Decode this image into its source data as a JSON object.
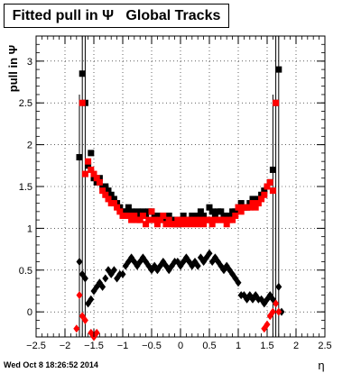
{
  "chart_data": {
    "type": "scatter",
    "title": "Fitted pull in Ψ   Global Tracks",
    "xlabel": "η",
    "ylabel": "pull in Ψ",
    "xlim": [
      -2.5,
      2.5
    ],
    "ylim": [
      -0.3,
      3.3
    ],
    "xticks": [
      "−2.5",
      "−2",
      "−1.5",
      "−1",
      "−0.5",
      "0",
      "0.5",
      "1",
      "1.5",
      "2",
      "2.5"
    ],
    "yticks": [
      "0",
      "0.5",
      "1",
      "1.5",
      "2",
      "2.5",
      "3"
    ],
    "grid": true,
    "series": [
      {
        "marker": "square",
        "color": "#000000",
        "points": [
          [
            -1.75,
            1.85
          ],
          [
            -1.7,
            2.85
          ],
          [
            -1.65,
            2.5
          ],
          [
            -1.6,
            1.75
          ],
          [
            -1.55,
            1.9
          ],
          [
            -1.5,
            1.6
          ],
          [
            -1.45,
            1.55
          ],
          [
            -1.4,
            1.6
          ],
          [
            -1.35,
            1.5
          ],
          [
            -1.3,
            1.5
          ],
          [
            -1.25,
            1.45
          ],
          [
            -1.2,
            1.4
          ],
          [
            -1.15,
            1.35
          ],
          [
            -1.1,
            1.3
          ],
          [
            -1.05,
            1.25
          ],
          [
            -1.0,
            1.2
          ],
          [
            -0.95,
            1.2
          ],
          [
            -0.9,
            1.25
          ],
          [
            -0.85,
            1.2
          ],
          [
            -0.8,
            1.15
          ],
          [
            -0.75,
            1.2
          ],
          [
            -0.7,
            1.15
          ],
          [
            -0.65,
            1.2
          ],
          [
            -0.6,
            1.15
          ],
          [
            -0.55,
            1.2
          ],
          [
            -0.5,
            1.2
          ],
          [
            -0.45,
            1.15
          ],
          [
            -0.4,
            1.15
          ],
          [
            -0.35,
            1.1
          ],
          [
            -0.3,
            1.15
          ],
          [
            -0.25,
            1.1
          ],
          [
            -0.2,
            1.15
          ],
          [
            -0.15,
            1.1
          ],
          [
            -0.1,
            1.1
          ],
          [
            -0.05,
            1.05
          ],
          [
            0.0,
            1.1
          ],
          [
            0.05,
            1.15
          ],
          [
            0.1,
            1.1
          ],
          [
            0.15,
            1.1
          ],
          [
            0.2,
            1.15
          ],
          [
            0.25,
            1.1
          ],
          [
            0.3,
            1.15
          ],
          [
            0.35,
            1.2
          ],
          [
            0.4,
            1.15
          ],
          [
            0.45,
            1.1
          ],
          [
            0.5,
            1.25
          ],
          [
            0.55,
            1.2
          ],
          [
            0.6,
            1.15
          ],
          [
            0.65,
            1.2
          ],
          [
            0.7,
            1.2
          ],
          [
            0.75,
            1.15
          ],
          [
            0.8,
            1.15
          ],
          [
            0.85,
            1.15
          ],
          [
            0.9,
            1.2
          ],
          [
            0.95,
            1.2
          ],
          [
            1.0,
            1.25
          ],
          [
            1.05,
            1.3
          ],
          [
            1.1,
            1.25
          ],
          [
            1.15,
            1.25
          ],
          [
            1.2,
            1.3
          ],
          [
            1.25,
            1.35
          ],
          [
            1.3,
            1.3
          ],
          [
            1.35,
            1.35
          ],
          [
            1.4,
            1.4
          ],
          [
            1.45,
            1.45
          ],
          [
            1.5,
            1.5
          ],
          [
            1.55,
            1.55
          ],
          [
            1.6,
            1.7
          ],
          [
            1.65,
            2.5
          ],
          [
            1.7,
            2.9
          ]
        ]
      },
      {
        "marker": "square",
        "color": "#ff0000",
        "points": [
          [
            -1.7,
            2.5
          ],
          [
            -1.65,
            1.65
          ],
          [
            -1.6,
            1.8
          ],
          [
            -1.55,
            1.7
          ],
          [
            -1.5,
            1.65
          ],
          [
            -1.45,
            1.6
          ],
          [
            -1.4,
            1.55
          ],
          [
            -1.35,
            1.45
          ],
          [
            -1.3,
            1.4
          ],
          [
            -1.25,
            1.35
          ],
          [
            -1.2,
            1.3
          ],
          [
            -1.15,
            1.3
          ],
          [
            -1.1,
            1.25
          ],
          [
            -1.05,
            1.2
          ],
          [
            -1.0,
            1.15
          ],
          [
            -0.95,
            1.15
          ],
          [
            -0.9,
            1.15
          ],
          [
            -0.85,
            1.1
          ],
          [
            -0.8,
            1.15
          ],
          [
            -0.75,
            1.1
          ],
          [
            -0.7,
            1.1
          ],
          [
            -0.65,
            1.15
          ],
          [
            -0.6,
            1.05
          ],
          [
            -0.55,
            1.1
          ],
          [
            -0.5,
            1.2
          ],
          [
            -0.45,
            1.1
          ],
          [
            -0.4,
            1.05
          ],
          [
            -0.35,
            1.1
          ],
          [
            -0.3,
            1.15
          ],
          [
            -0.25,
            1.05
          ],
          [
            -0.2,
            1.1
          ],
          [
            -0.15,
            1.05
          ],
          [
            -0.1,
            1.05
          ],
          [
            -0.05,
            1.1
          ],
          [
            0.0,
            1.05
          ],
          [
            0.05,
            1.1
          ],
          [
            0.1,
            1.05
          ],
          [
            0.15,
            1.1
          ],
          [
            0.2,
            1.05
          ],
          [
            0.25,
            1.1
          ],
          [
            0.3,
            1.05
          ],
          [
            0.35,
            1.1
          ],
          [
            0.4,
            1.05
          ],
          [
            0.45,
            1.1
          ],
          [
            0.5,
            1.1
          ],
          [
            0.55,
            1.05
          ],
          [
            0.6,
            1.1
          ],
          [
            0.65,
            1.1
          ],
          [
            0.7,
            1.1
          ],
          [
            0.75,
            1.1
          ],
          [
            0.8,
            1.05
          ],
          [
            0.85,
            1.1
          ],
          [
            0.9,
            1.1
          ],
          [
            0.95,
            1.15
          ],
          [
            1.0,
            1.25
          ],
          [
            1.05,
            1.2
          ],
          [
            1.1,
            1.25
          ],
          [
            1.15,
            1.25
          ],
          [
            1.2,
            1.25
          ],
          [
            1.25,
            1.3
          ],
          [
            1.3,
            1.25
          ],
          [
            1.35,
            1.3
          ],
          [
            1.4,
            1.35
          ],
          [
            1.45,
            1.4
          ],
          [
            1.5,
            1.5
          ],
          [
            1.55,
            1.55
          ],
          [
            1.6,
            1.45
          ],
          [
            1.65,
            2.5
          ]
        ]
      },
      {
        "marker": "diamond",
        "color": "#000000",
        "points": [
          [
            -1.75,
            0.6
          ],
          [
            -1.7,
            0.45
          ],
          [
            -1.65,
            0.4
          ],
          [
            -1.6,
            0.1
          ],
          [
            -1.55,
            0.15
          ],
          [
            -1.5,
            0.25
          ],
          [
            -1.45,
            0.3
          ],
          [
            -1.4,
            0.35
          ],
          [
            -1.35,
            0.3
          ],
          [
            -1.3,
            0.4
          ],
          [
            -1.25,
            0.5
          ],
          [
            -1.2,
            0.45
          ],
          [
            -1.15,
            0.5
          ],
          [
            -1.1,
            0.4
          ],
          [
            -1.05,
            0.45
          ],
          [
            -1.0,
            0.45
          ],
          [
            -0.95,
            0.55
          ],
          [
            -0.9,
            0.6
          ],
          [
            -0.85,
            0.65
          ],
          [
            -0.8,
            0.6
          ],
          [
            -0.75,
            0.55
          ],
          [
            -0.7,
            0.6
          ],
          [
            -0.65,
            0.65
          ],
          [
            -0.6,
            0.6
          ],
          [
            -0.55,
            0.55
          ],
          [
            -0.5,
            0.5
          ],
          [
            -0.45,
            0.55
          ],
          [
            -0.4,
            0.5
          ],
          [
            -0.35,
            0.55
          ],
          [
            -0.3,
            0.6
          ],
          [
            -0.25,
            0.55
          ],
          [
            -0.2,
            0.5
          ],
          [
            -0.15,
            0.55
          ],
          [
            -0.1,
            0.6
          ],
          [
            -0.05,
            0.6
          ],
          [
            0.0,
            0.55
          ],
          [
            0.05,
            0.6
          ],
          [
            0.1,
            0.65
          ],
          [
            0.15,
            0.6
          ],
          [
            0.2,
            0.55
          ],
          [
            0.25,
            0.6
          ],
          [
            0.3,
            0.55
          ],
          [
            0.35,
            0.65
          ],
          [
            0.4,
            0.6
          ],
          [
            0.45,
            0.65
          ],
          [
            0.5,
            0.7
          ],
          [
            0.55,
            0.6
          ],
          [
            0.6,
            0.65
          ],
          [
            0.65,
            0.6
          ],
          [
            0.7,
            0.55
          ],
          [
            0.75,
            0.5
          ],
          [
            0.8,
            0.55
          ],
          [
            0.85,
            0.5
          ],
          [
            0.9,
            0.45
          ],
          [
            0.95,
            0.4
          ],
          [
            1.0,
            0.35
          ],
          [
            1.05,
            0.2
          ],
          [
            1.1,
            0.2
          ],
          [
            1.15,
            0.15
          ],
          [
            1.2,
            0.2
          ],
          [
            1.25,
            0.15
          ],
          [
            1.3,
            0.2
          ],
          [
            1.35,
            0.15
          ],
          [
            1.4,
            0.15
          ],
          [
            1.45,
            0.1
          ],
          [
            1.5,
            0.15
          ],
          [
            1.55,
            0.2
          ],
          [
            1.6,
            0.15
          ],
          [
            1.65,
            0.1
          ],
          [
            1.7,
            0.3
          ],
          [
            1.75,
            0.0
          ]
        ]
      },
      {
        "marker": "diamond",
        "color": "#ff0000",
        "points": [
          [
            -1.8,
            -0.2
          ],
          [
            -1.75,
            0.2
          ],
          [
            -1.7,
            -0.05
          ],
          [
            -1.65,
            -0.1
          ],
          [
            -1.55,
            -0.25
          ],
          [
            -1.5,
            -0.3
          ],
          [
            -1.45,
            -0.25
          ],
          [
            1.45,
            -0.2
          ],
          [
            1.5,
            -0.15
          ],
          [
            1.55,
            -0.05
          ],
          [
            1.6,
            0.0
          ],
          [
            1.65,
            0.1
          ],
          [
            1.7,
            0.0
          ]
        ]
      }
    ],
    "error_bars": [
      {
        "x": -1.7,
        "ylow": -0.3,
        "yhigh": 3.3
      },
      {
        "x": -1.75,
        "ylow": -0.3,
        "yhigh": 2.6
      },
      {
        "x": -1.65,
        "ylow": -0.3,
        "yhigh": 3.3
      },
      {
        "x": 1.65,
        "ylow": -0.3,
        "yhigh": 3.3
      },
      {
        "x": 1.7,
        "ylow": -0.3,
        "yhigh": 3.3
      },
      {
        "x": 1.6,
        "ylow": -0.3,
        "yhigh": 2.6
      }
    ]
  },
  "timestamp": "Wed Oct  8 18:26:52 2014"
}
